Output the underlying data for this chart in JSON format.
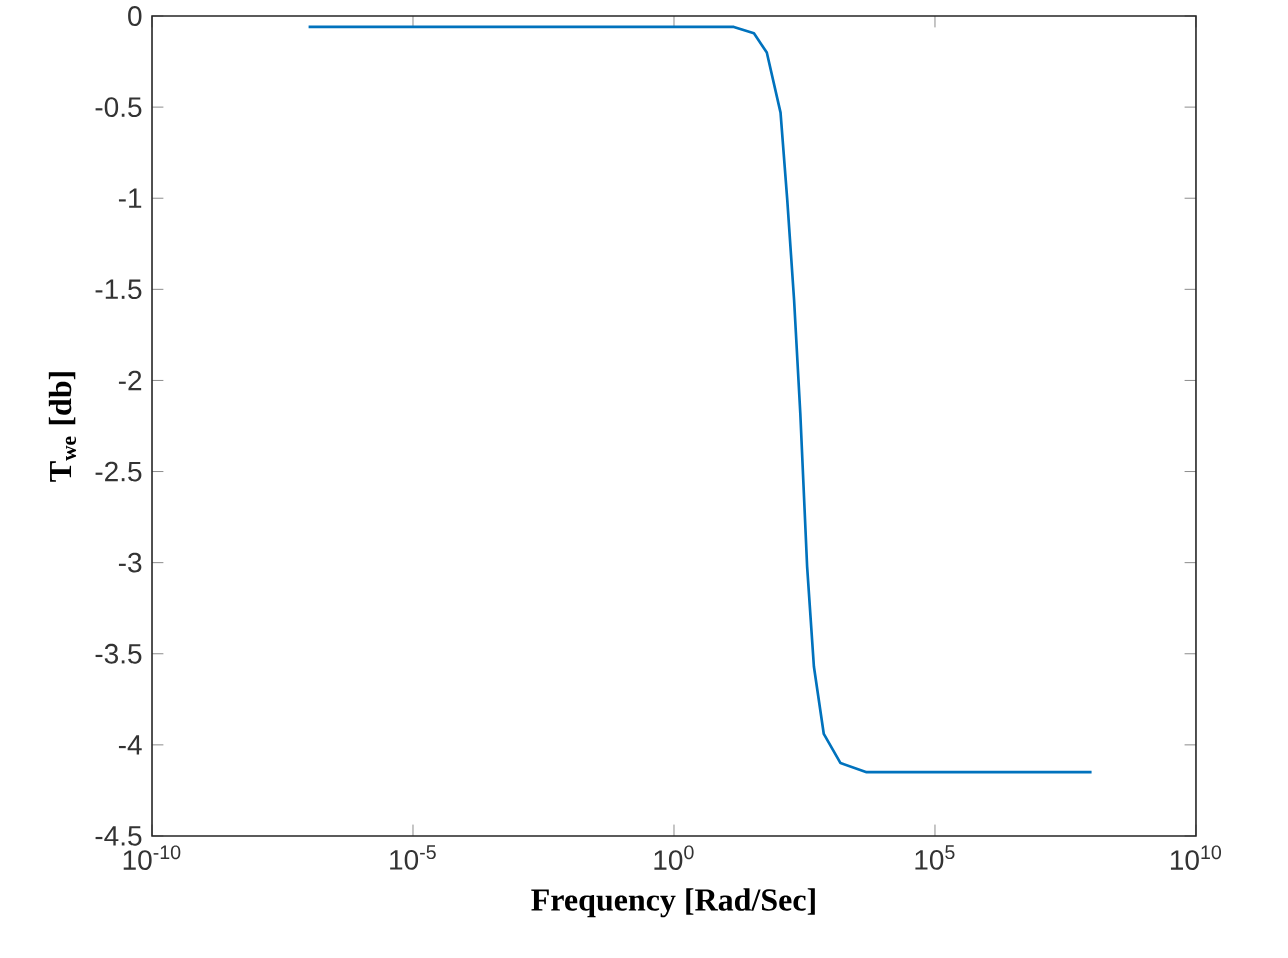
{
  "chart_data": {
    "type": "line",
    "xlabel": "Frequency [Rad/Sec]",
    "ylabel": "T$_{we}$ [db]",
    "log": "x",
    "xlim": [
      1e-10,
      10000000000.0
    ],
    "ylim": [
      -4.5,
      0
    ],
    "xticks": [
      {
        "value": 1e-10,
        "label": "10$^{-10}$"
      },
      {
        "value": 1e-05,
        "label": "10$^{-5}$"
      },
      {
        "value": 1,
        "label": "10$^{0}$"
      },
      {
        "value": 100000.0,
        "label": "10$^{5}$"
      },
      {
        "value": 10000000000.0,
        "label": "10$^{10}$"
      }
    ],
    "yticks": [
      0,
      -0.5,
      -1,
      -1.5,
      -2,
      -2.5,
      -3,
      -3.5,
      -4,
      -4.5
    ],
    "series": [
      {
        "color": "#0072bd",
        "x": [
          1e-07,
          0.001,
          1,
          14,
          34,
          60,
          110,
          148,
          200,
          263,
          355,
          479,
          741,
          1549,
          4898,
          1000000.0,
          100000000.0
        ],
        "values": [
          -0.06,
          -0.06,
          -0.06,
          -0.06,
          -0.095,
          -0.2,
          -0.53,
          -1.01,
          -1.56,
          -2.18,
          -3.02,
          -3.57,
          -3.94,
          -4.1,
          -4.15,
          -4.15,
          -4.15
        ]
      }
    ]
  }
}
